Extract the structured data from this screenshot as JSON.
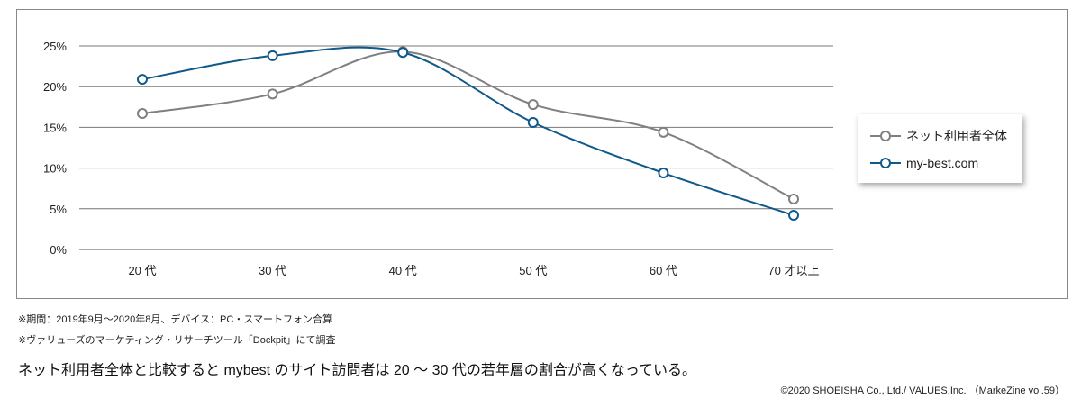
{
  "chart_data": {
    "type": "line",
    "categories": [
      "20 代",
      "30 代",
      "40 代",
      "50 代",
      "60 代",
      "70 才以上"
    ],
    "ylim": [
      0,
      25
    ],
    "yticks": [
      "0%",
      "5%",
      "10%",
      "15%",
      "20%",
      "25%"
    ],
    "grid": true,
    "legend_position": "right",
    "series": [
      {
        "name": "ネット利用者全体",
        "color": "#808080",
        "values": [
          16.7,
          19.1,
          24.3,
          17.8,
          14.4,
          6.2
        ]
      },
      {
        "name": "my-best.com",
        "color": "#0f5a8a",
        "values": [
          20.9,
          23.8,
          24.2,
          15.6,
          9.4,
          4.2
        ]
      }
    ]
  },
  "notes": [
    "※期間：2019年9月～2020年8月、デバイス：PC・スマートフォン合算",
    "※ヴァリューズのマーケティング・リサーチツール「Dockpit」にて調査"
  ],
  "caption": "ネット利用者全体と比較すると mybest のサイト訪問者は 20 ～ 30 代の若年層の割合が高くなっている。",
  "credit": "©2020 SHOEISHA Co., Ltd./ VALUES,Inc. （MarkeZine vol.59）"
}
